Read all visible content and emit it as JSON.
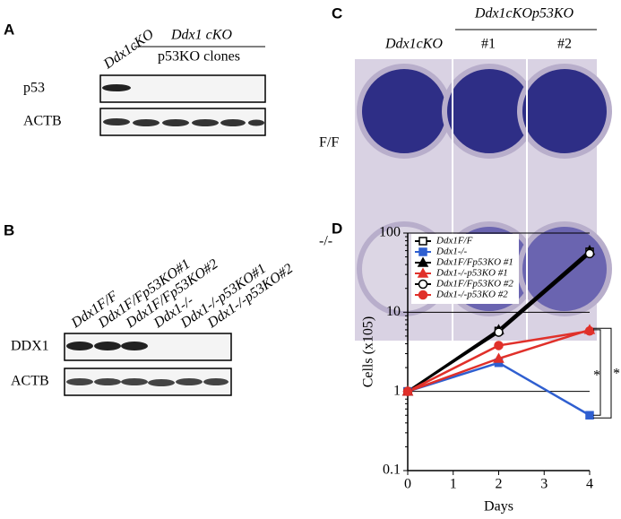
{
  "panels": {
    "A": {
      "label": "A",
      "lane_header": "Ddx1cKO",
      "group_header": [
        "Ddx1 cKO",
        "p53KO clones"
      ],
      "rows": [
        "p53",
        "ACTB"
      ]
    },
    "B": {
      "label": "B",
      "lanes": [
        "Ddx1F/F",
        "Ddx1F/Fp53KO#1",
        "Ddx1F/Fp53KO#2",
        "Ddx1-/-",
        "Ddx1-/-p53KO#1",
        "Ddx1-/-p53KO#2"
      ],
      "rows": [
        "DDX1",
        "ACTB"
      ]
    },
    "C": {
      "label": "C",
      "group_header": "Ddx1cKOp53KO",
      "columns": [
        "Ddx1cKO",
        "#1",
        "#2"
      ],
      "rows": [
        "F/F",
        "-/-"
      ]
    },
    "D": {
      "label": "D"
    }
  },
  "chart_data": {
    "type": "line",
    "xlabel": "Days",
    "ylabel": "Cells (x105)",
    "x": [
      0,
      2,
      4
    ],
    "xlim": [
      0,
      4
    ],
    "xticks": [
      0,
      1,
      2,
      3,
      4
    ],
    "ylim": [
      0.1,
      100
    ],
    "yticks": [
      0.1,
      1,
      10,
      100
    ],
    "log_y": true,
    "grid": true,
    "legend": "upper-left",
    "annotations": [
      "*",
      "*"
    ],
    "series": [
      {
        "name": "Ddx1F/F",
        "color": "#000000",
        "marker": "square",
        "filled": false,
        "values": [
          1,
          5.8,
          58
        ]
      },
      {
        "name": "Ddx1-/-",
        "color": "#2f5fd0",
        "marker": "square",
        "filled": true,
        "values": [
          1,
          2.3,
          0.5
        ]
      },
      {
        "name": "Ddx1F/Fp53KO #1",
        "color": "#000000",
        "marker": "triangle",
        "filled": true,
        "values": [
          1,
          6,
          60
        ]
      },
      {
        "name": "Ddx1-/-p53KO #1",
        "color": "#e0302a",
        "marker": "triangle",
        "filled": true,
        "values": [
          1,
          2.6,
          6
        ]
      },
      {
        "name": "Ddx1F/Fp53KO #2",
        "color": "#000000",
        "marker": "circle",
        "filled": false,
        "values": [
          1,
          5.6,
          55
        ]
      },
      {
        "name": "Ddx1-/-p53KO #2",
        "color": "#e0302a",
        "marker": "circle",
        "filled": true,
        "values": [
          1,
          3.8,
          5.8
        ]
      }
    ]
  }
}
